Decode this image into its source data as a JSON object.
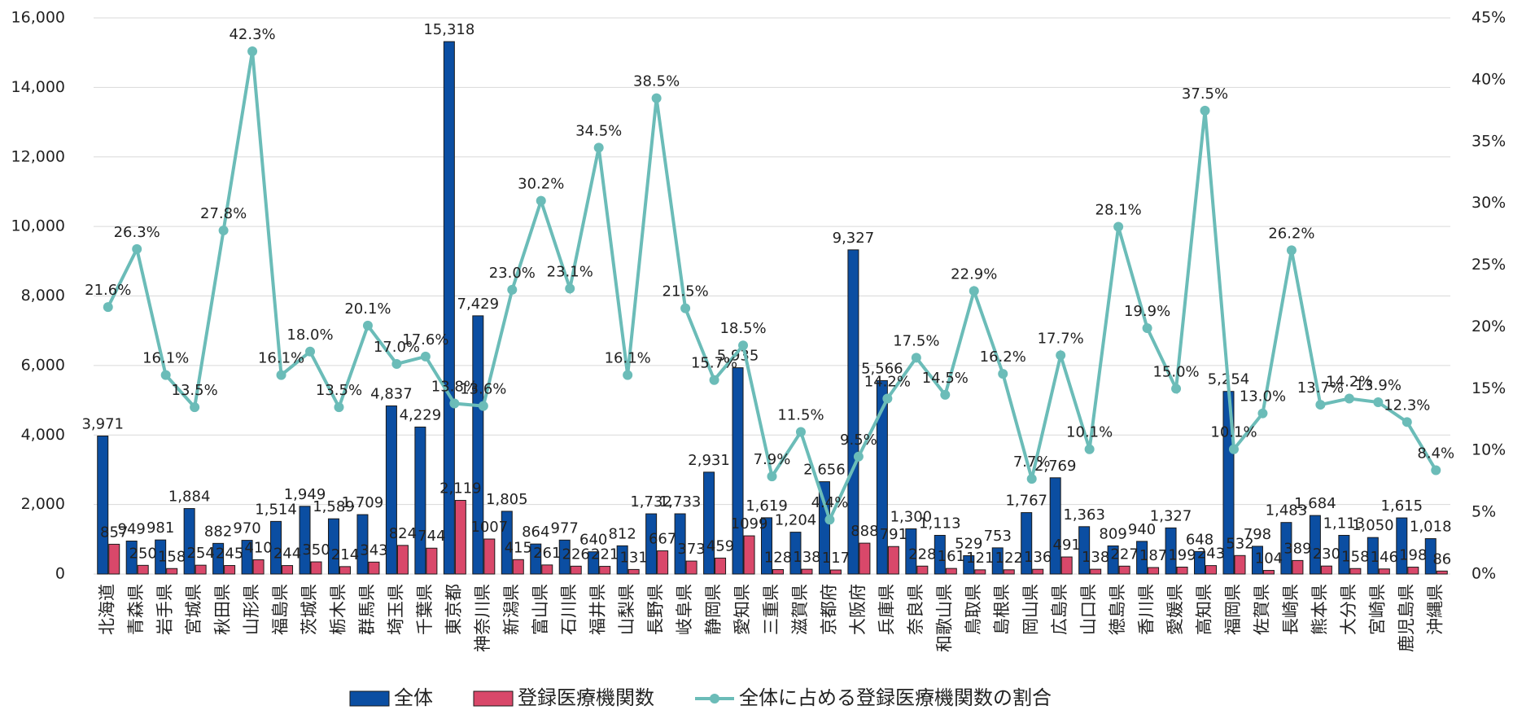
{
  "chart_data": {
    "type": "bar",
    "categories": [
      "北海道",
      "青森県",
      "岩手県",
      "宮城県",
      "秋田県",
      "山形県",
      "福島県",
      "茨城県",
      "栃木県",
      "群馬県",
      "埼玉県",
      "千葉県",
      "東京都",
      "神奈川県",
      "新潟県",
      "富山県",
      "石川県",
      "福井県",
      "山梨県",
      "長野県",
      "岐阜県",
      "静岡県",
      "愛知県",
      "三重県",
      "滋賀県",
      "京都府",
      "大阪府",
      "兵庫県",
      "奈良県",
      "和歌山県",
      "鳥取県",
      "島根県",
      "岡山県",
      "広島県",
      "山口県",
      "徳島県",
      "香川県",
      "愛媛県",
      "高知県",
      "福岡県",
      "佐賀県",
      "長崎県",
      "熊本県",
      "大分県",
      "宮崎県",
      "鹿児島県",
      "沖縄県"
    ],
    "series": [
      {
        "name": "全体",
        "color": "#0b4ea2",
        "values": [
          3971,
          949,
          981,
          1884,
          882,
          970,
          1514,
          1949,
          1589,
          1709,
          4837,
          4229,
          15318,
          7429,
          1805,
          864,
          977,
          640,
          812,
          1732,
          1733,
          2931,
          5935,
          1619,
          1204,
          2656,
          9327,
          5566,
          1300,
          1113,
          529,
          753,
          1767,
          2769,
          1363,
          809,
          940,
          1327,
          648,
          5254,
          798,
          1483,
          1684,
          1113,
          1050,
          1615,
          1018
        ],
        "value_labels": [
          "3,971",
          "949",
          "981",
          "1,884",
          "882",
          "970",
          "1,514",
          "1,949",
          "1,589",
          "1,709",
          "4,837",
          "4,229",
          "15,318",
          "7,429",
          "1,805",
          "864",
          "977",
          "640",
          "812",
          "1,732",
          "1,733",
          "2,931",
          "5,935",
          "1,619",
          "1,204",
          "2,656",
          "9,327",
          "5,566",
          "1,300",
          "1,113",
          "529",
          "753",
          "1,767",
          "2,769",
          "1,363",
          "809",
          "940",
          "1,327",
          "648",
          "5,254",
          "798",
          "1,483",
          "1,684",
          "1,113",
          "1,050",
          "1,615",
          "1,018"
        ]
      },
      {
        "name": "登録医療機関数",
        "color": "#d9486a",
        "values": [
          857,
          250,
          158,
          254,
          245,
          410,
          244,
          350,
          214,
          343,
          824,
          744,
          2119,
          1007,
          415,
          261,
          226,
          221,
          131,
          667,
          373,
          459,
          1099,
          128,
          138,
          117,
          888,
          791,
          228,
          161,
          121,
          122,
          136,
          491,
          138,
          227,
          187,
          199,
          243,
          532,
          104,
          389,
          230,
          158,
          146,
          198,
          86
        ],
        "value_labels": [
          "857",
          "250",
          "158",
          "254",
          "245",
          "410",
          "244",
          "350",
          "214",
          "343",
          "824",
          "744",
          "2,119",
          "1007",
          "415",
          "261",
          "226",
          "221",
          "131",
          "667",
          "373",
          "459",
          "1099",
          "128",
          "138",
          "117",
          "888",
          "791",
          "228",
          "161",
          "121",
          "122",
          "136",
          "491",
          "138",
          "227",
          "187",
          "199",
          "243",
          "532",
          "104",
          "389",
          "230",
          "158",
          "146",
          "198",
          "86"
        ]
      },
      {
        "name": "全体に占める登録医療機関数の割合",
        "color": "#6bbcb8",
        "axis": "y2",
        "type": "line",
        "values": [
          21.6,
          26.3,
          16.1,
          13.5,
          27.8,
          42.3,
          16.1,
          18.0,
          13.5,
          20.1,
          17.0,
          17.6,
          13.8,
          13.6,
          23.0,
          30.2,
          23.1,
          34.5,
          16.1,
          38.5,
          21.5,
          15.7,
          18.5,
          7.9,
          11.5,
          4.4,
          9.5,
          14.2,
          17.5,
          14.5,
          22.9,
          16.2,
          7.7,
          17.7,
          10.1,
          28.1,
          19.9,
          15.0,
          37.5,
          10.1,
          13.0,
          26.2,
          13.7,
          14.2,
          13.9,
          12.3,
          8.4
        ],
        "value_labels": [
          "21.6%",
          "26.3%",
          "16.1%",
          "13.5%",
          "27.8%",
          "42.3%",
          "16.1%",
          "18.0%",
          "13.5%",
          "20.1%",
          "17.0%",
          "17.6%",
          "13.8%",
          "13.6%",
          "23.0%",
          "30.2%",
          "23.1%",
          "34.5%",
          "16.1%",
          "38.5%",
          "21.5%",
          "15.7%",
          "18.5%",
          "7.9%",
          "11.5%",
          "4.4%",
          "9.5%",
          "14.2%",
          "17.5%",
          "14.5%",
          "22.9%",
          "16.2%",
          "7.7%",
          "17.7%",
          "10.1%",
          "28.1%",
          "19.9%",
          "15.0%",
          "37.5%",
          "10.1%",
          "13.0%",
          "26.2%",
          "13.7%",
          "14.2%",
          "13.9%",
          "12.3%",
          "8.4%"
        ]
      }
    ],
    "ylim": [
      0,
      16000
    ],
    "yticks": [
      0,
      {
        "value": 2000,
        "label": "2,000"
      },
      {
        "value": 4000,
        "label": "4,000"
      },
      {
        "value": 6000,
        "label": "6,000"
      },
      {
        "value": 8000,
        "label": "8,000"
      },
      {
        "value": 10000,
        "label": "10,000"
      },
      {
        "value": 12000,
        "label": "12,000"
      },
      {
        "value": 14000,
        "label": "14,000"
      },
      {
        "value": 16000,
        "label": "16,000"
      }
    ],
    "y2lim": [
      0,
      45
    ],
    "y2ticks": [
      {
        "value": 0,
        "label": "0%"
      },
      {
        "value": 5,
        "label": "5%"
      },
      {
        "value": 10,
        "label": "10%"
      },
      {
        "value": 15,
        "label": "15%"
      },
      {
        "value": 20,
        "label": "20%"
      },
      {
        "value": 25,
        "label": "25%"
      },
      {
        "value": 30,
        "label": "30%"
      },
      {
        "value": 35,
        "label": "35%"
      },
      {
        "value": 40,
        "label": "40%"
      },
      {
        "value": 45,
        "label": "45%"
      }
    ],
    "grid": true,
    "legend": "bottom"
  }
}
